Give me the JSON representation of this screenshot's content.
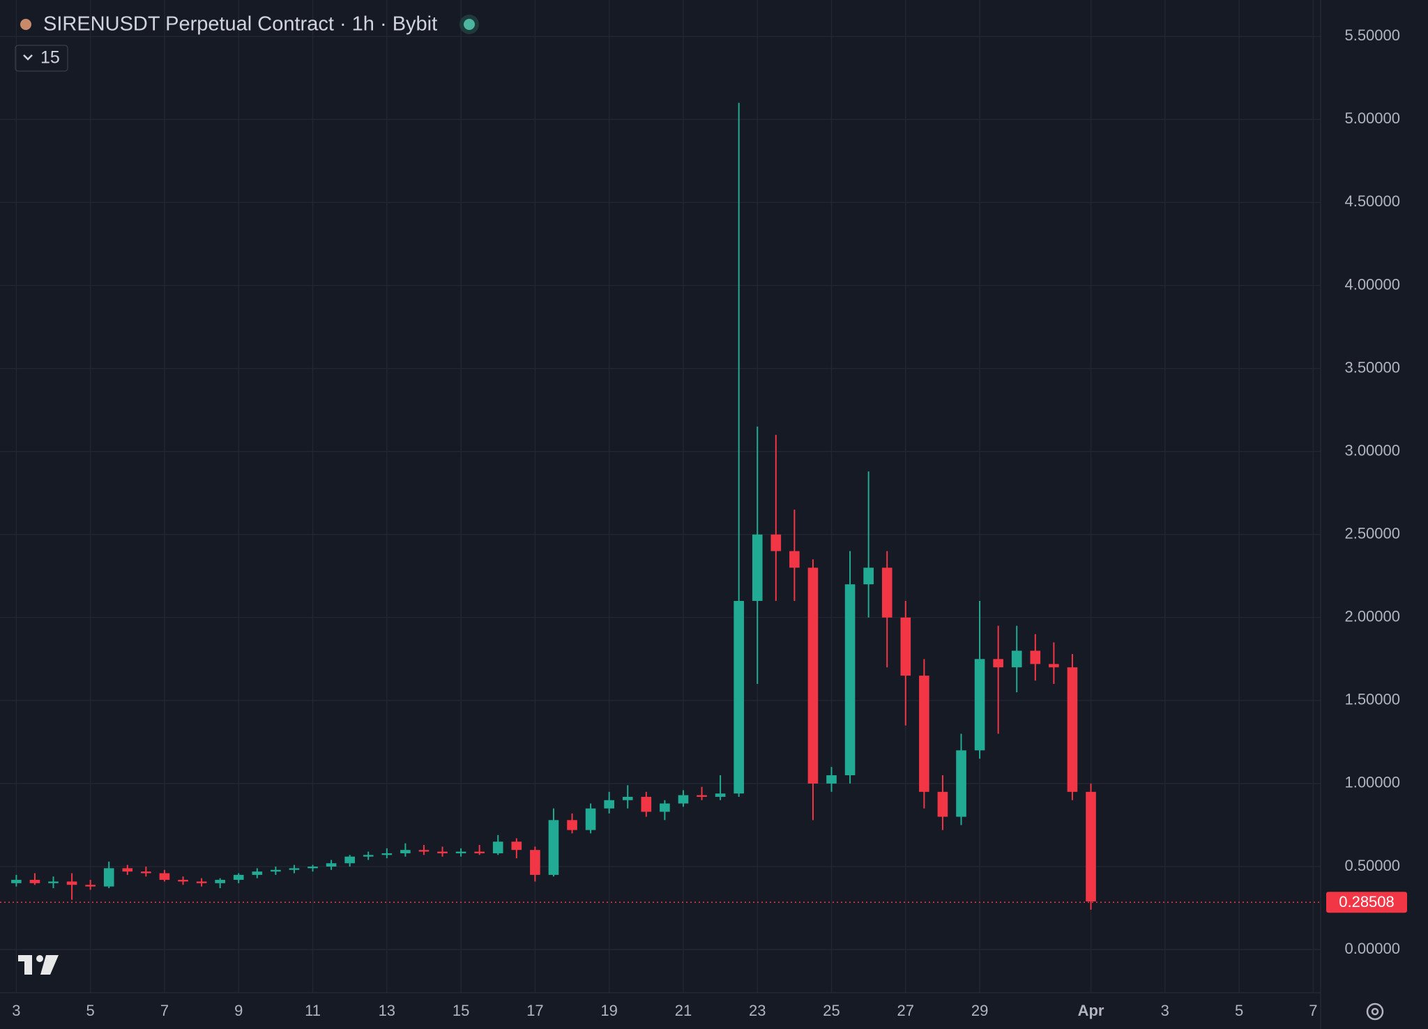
{
  "header": {
    "title": "SIRENUSDT Perpetual Contract · 1h · Bybit",
    "indicator_count": "15"
  },
  "chart_data": {
    "type": "candlestick",
    "up_color": "#22ab94",
    "down_color": "#f23645",
    "grid": true,
    "x": [
      3.0,
      3.5,
      4.0,
      4.5,
      5.0,
      5.5,
      6.0,
      6.5,
      7.0,
      7.5,
      8.0,
      8.5,
      9.0,
      9.5,
      10.0,
      10.5,
      11.0,
      11.5,
      12.0,
      12.5,
      13.0,
      13.5,
      14.0,
      14.5,
      15.0,
      15.5,
      16.0,
      16.5,
      17.0,
      17.5,
      18.0,
      18.5,
      19.0,
      19.5,
      20.0,
      20.5,
      21.0,
      21.5,
      22.0,
      22.5,
      23.0,
      23.5,
      24.0,
      24.5,
      25.0,
      25.5,
      26.0,
      26.5,
      27.0,
      27.5,
      28.0,
      28.5,
      29.0,
      29.5,
      30.0,
      30.5,
      31.0,
      31.5,
      32.0
    ],
    "open": [
      0.4,
      0.42,
      0.4,
      0.41,
      0.39,
      0.38,
      0.49,
      0.47,
      0.46,
      0.42,
      0.41,
      0.4,
      0.42,
      0.45,
      0.47,
      0.48,
      0.49,
      0.5,
      0.52,
      0.56,
      0.57,
      0.58,
      0.6,
      0.59,
      0.58,
      0.59,
      0.58,
      0.65,
      0.6,
      0.45,
      0.78,
      0.72,
      0.85,
      0.9,
      0.92,
      0.83,
      0.88,
      0.93,
      0.92,
      0.94,
      2.1,
      2.5,
      2.4,
      2.3,
      1.0,
      1.05,
      2.2,
      2.3,
      2.0,
      1.65,
      0.95,
      0.8,
      1.2,
      1.75,
      1.7,
      1.8,
      1.72,
      1.7,
      0.95
    ],
    "high": [
      0.45,
      0.46,
      0.44,
      0.46,
      0.42,
      0.53,
      0.51,
      0.5,
      0.48,
      0.44,
      0.43,
      0.43,
      0.46,
      0.49,
      0.5,
      0.51,
      0.51,
      0.54,
      0.57,
      0.59,
      0.61,
      0.64,
      0.63,
      0.62,
      0.61,
      0.63,
      0.69,
      0.67,
      0.62,
      0.85,
      0.82,
      0.88,
      0.95,
      0.99,
      0.95,
      0.9,
      0.96,
      0.98,
      1.05,
      5.1,
      3.15,
      3.1,
      2.65,
      2.35,
      1.1,
      2.4,
      2.88,
      2.4,
      2.1,
      1.75,
      1.05,
      1.3,
      2.1,
      1.95,
      1.95,
      1.9,
      1.85,
      1.78,
      1.0
    ],
    "low": [
      0.38,
      0.39,
      0.37,
      0.3,
      0.36,
      0.37,
      0.45,
      0.44,
      0.41,
      0.39,
      0.38,
      0.37,
      0.4,
      0.43,
      0.45,
      0.46,
      0.47,
      0.48,
      0.5,
      0.54,
      0.55,
      0.56,
      0.57,
      0.56,
      0.56,
      0.57,
      0.57,
      0.55,
      0.41,
      0.44,
      0.7,
      0.7,
      0.82,
      0.85,
      0.8,
      0.78,
      0.86,
      0.9,
      0.9,
      0.92,
      1.6,
      2.1,
      2.1,
      0.78,
      0.95,
      1.0,
      2.0,
      1.7,
      1.35,
      0.85,
      0.72,
      0.75,
      1.15,
      1.3,
      1.55,
      1.62,
      1.6,
      0.9,
      0.24
    ],
    "close": [
      0.42,
      0.4,
      0.41,
      0.39,
      0.38,
      0.49,
      0.47,
      0.46,
      0.42,
      0.41,
      0.4,
      0.42,
      0.45,
      0.47,
      0.48,
      0.49,
      0.5,
      0.52,
      0.56,
      0.57,
      0.58,
      0.6,
      0.59,
      0.58,
      0.59,
      0.58,
      0.65,
      0.6,
      0.45,
      0.78,
      0.72,
      0.85,
      0.9,
      0.92,
      0.83,
      0.88,
      0.93,
      0.92,
      0.94,
      2.1,
      2.5,
      2.4,
      2.3,
      1.0,
      1.05,
      2.2,
      2.3,
      2.0,
      1.65,
      0.95,
      0.8,
      1.2,
      1.75,
      1.7,
      1.8,
      1.72,
      1.7,
      0.95,
      0.29
    ],
    "last_price": {
      "value": 0.28508,
      "label": "0.28508"
    },
    "xlim": [
      2.56,
      38.2
    ],
    "ylim": [
      -0.26,
      5.69
    ],
    "xticks": [
      3,
      5,
      7,
      9,
      11,
      13,
      15,
      17,
      19,
      21,
      23,
      25,
      27,
      29,
      {
        "value": 32,
        "label": "Apr"
      },
      {
        "value": 34,
        "label": "3"
      },
      {
        "value": 36,
        "label": "5"
      },
      {
        "value": 38,
        "label": "7"
      }
    ],
    "yticks": [
      {
        "value": 0,
        "label": "0.00000"
      },
      {
        "value": 0.5,
        "label": "0.50000"
      },
      {
        "value": 1,
        "label": "1.00000"
      },
      {
        "value": 1.5,
        "label": "1.50000"
      },
      {
        "value": 2,
        "label": "2.00000"
      },
      {
        "value": 2.5,
        "label": "2.50000"
      },
      {
        "value": 3,
        "label": "3.00000"
      },
      {
        "value": 3.5,
        "label": "3.50000"
      },
      {
        "value": 4,
        "label": "4.00000"
      },
      {
        "value": 4.5,
        "label": "4.50000"
      },
      {
        "value": 5,
        "label": "5.00000"
      },
      {
        "value": 5.5,
        "label": "5.50000"
      }
    ]
  }
}
